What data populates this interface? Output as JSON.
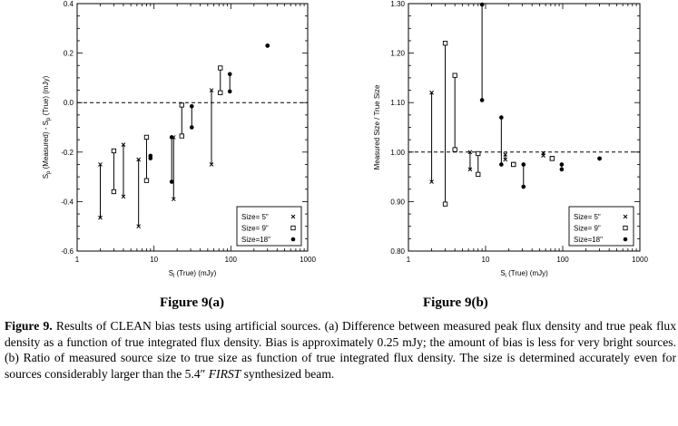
{
  "figure_labels": [
    "Figure 9(a)",
    "Figure 9(b)"
  ],
  "caption": {
    "lead": "Figure 9.",
    "text": "Results of CLEAN bias tests using artificial sources. (a) Difference between measured peak flux density and true peak flux density as a function of true integrated flux density. Bias is approximately 0.25 mJy; the amount of bias is less for very bright sources. (b) Ratio of measured source size to true size as function of true integrated flux density. The size is determined accurately even for sources considerably larger than the 5.4″ ",
    "emph": "FIRST",
    "tail": " synthesized beam."
  },
  "legend": {
    "entries": [
      {
        "label": "Size=  5\"",
        "marker": "x"
      },
      {
        "label": "Size=  9\"",
        "marker": "square"
      },
      {
        "label": "Size=18\"",
        "marker": "dot"
      }
    ]
  },
  "chart_data": [
    {
      "type": "scatter",
      "panel": "a",
      "xlabel": "S_i (True)  (mJy)",
      "ylabel": "S_p (Measured) - S_p (True)  (mJy)",
      "xscale": "log",
      "xlim": [
        1,
        1000
      ],
      "ylim": [
        -0.6,
        0.4
      ],
      "xticks": [
        1,
        10,
        100,
        1000
      ],
      "xtick_labels": [
        "1",
        "10",
        "100",
        "1000"
      ],
      "yticks": [
        -0.6,
        -0.4,
        -0.2,
        0.0,
        0.2,
        0.4
      ],
      "ytick_labels": [
        "-0.6",
        "-0.4",
        "-0.2",
        "0.0",
        "0.2",
        "0.4"
      ],
      "reference_line": 0.0,
      "legend_position": "bottom-right",
      "series": [
        {
          "marker": "x",
          "points": [
            {
              "x": 2,
              "y1": -0.25,
              "y2": -0.465
            },
            {
              "x": 4,
              "y1": -0.17,
              "y2": -0.38
            },
            {
              "x": 6.3,
              "y1": -0.23,
              "y2": -0.5
            },
            {
              "x": 18,
              "y1": -0.14,
              "y2": -0.39
            },
            {
              "x": 56,
              "y1": 0.05,
              "y2": -0.25
            }
          ]
        },
        {
          "marker": "square",
          "points": [
            {
              "x": 3,
              "y1": -0.195,
              "y2": -0.36
            },
            {
              "x": 8,
              "y1": -0.14,
              "y2": -0.315
            },
            {
              "x": 23,
              "y1": -0.01,
              "y2": -0.135
            },
            {
              "x": 73,
              "y1": 0.14,
              "y2": 0.04
            }
          ]
        },
        {
          "marker": "dot",
          "points": [
            {
              "x": 9,
              "y1": -0.215,
              "y2": -0.225
            },
            {
              "x": 17,
              "y1": -0.14,
              "y2": -0.32
            },
            {
              "x": 31,
              "y1": -0.015,
              "y2": -0.1
            },
            {
              "x": 97,
              "y1": 0.115,
              "y2": 0.045
            },
            {
              "x": 300,
              "y1": 0.23,
              "y2": 0.23
            }
          ]
        }
      ]
    },
    {
      "type": "scatter",
      "panel": "b",
      "xlabel": "S_i (True)  (mJy)",
      "ylabel": "Measured Size / True Size",
      "xscale": "log",
      "xlim": [
        1,
        1000
      ],
      "ylim": [
        0.8,
        1.3
      ],
      "xticks": [
        1,
        10,
        100,
        1000
      ],
      "xtick_labels": [
        "1",
        "10",
        "100",
        "1000"
      ],
      "yticks": [
        0.8,
        0.9,
        1.0,
        1.1,
        1.2,
        1.3
      ],
      "ytick_labels": [
        "0.80",
        "0.90",
        "1.00",
        "1.10",
        "1.20",
        "1.30"
      ],
      "reference_line": 1.0,
      "legend_position": "bottom-right",
      "series": [
        {
          "marker": "x",
          "points": [
            {
              "x": 2,
              "y1": 1.12,
              "y2": 0.94
            },
            {
              "x": 6.3,
              "y1": 1.0,
              "y2": 0.965
            },
            {
              "x": 18,
              "y1": 0.995,
              "y2": 0.985
            },
            {
              "x": 56,
              "y1": 0.998,
              "y2": 0.993
            }
          ]
        },
        {
          "marker": "square",
          "points": [
            {
              "x": 3,
              "y1": 1.22,
              "y2": 0.895
            },
            {
              "x": 4,
              "y1": 1.155,
              "y2": 1.005
            },
            {
              "x": 8,
              "y1": 0.997,
              "y2": 0.955
            },
            {
              "x": 23,
              "y1": 0.975,
              "y2": 0.975
            },
            {
              "x": 73,
              "y1": 0.987,
              "y2": 0.987
            }
          ]
        },
        {
          "marker": "dot",
          "points": [
            {
              "x": 9,
              "y1": 1.3,
              "y2": 1.105
            },
            {
              "x": 16,
              "y1": 1.07,
              "y2": 0.975
            },
            {
              "x": 31,
              "y1": 0.975,
              "y2": 0.93
            },
            {
              "x": 97,
              "y1": 0.975,
              "y2": 0.965
            },
            {
              "x": 300,
              "y1": 0.987,
              "y2": 0.987
            }
          ]
        }
      ]
    }
  ]
}
